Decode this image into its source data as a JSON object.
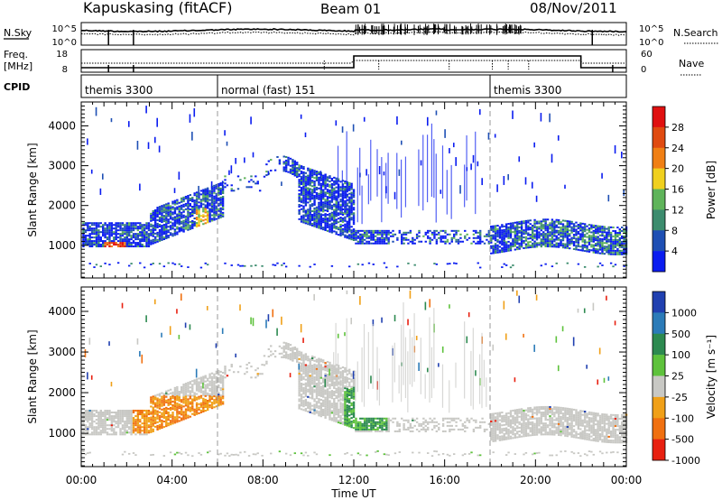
{
  "header": {
    "station": "Kapuskasing (fitACF)",
    "beam": "Beam 01",
    "date": "08/Nov/2011"
  },
  "labels": {
    "nsky": "N.Sky",
    "nsearch": "N.Search",
    "freq": "Freq.",
    "freq_unit": "[MHz]",
    "nave": "Nave",
    "cpid": "CPID",
    "tick_1e5_left": "10^5",
    "tick_1e0_left": "10^0",
    "tick_1e5_right": "10^5",
    "tick_1e0_right": "10^0",
    "freq_ticks": [
      "18",
      "8"
    ],
    "nave_ticks": [
      "60",
      "0"
    ]
  },
  "cpid_segments": [
    {
      "label": "themis 3300",
      "start_h": 0,
      "end_h": 6
    },
    {
      "label": "normal (fast) 151",
      "start_h": 6,
      "end_h": 18
    },
    {
      "label": "themis 3300",
      "start_h": 18,
      "end_h": 24
    }
  ],
  "chart_data": [
    {
      "type": "heatmap",
      "name": "power",
      "xlabel": "Time UT",
      "ylabel": "Slant Range [km]",
      "xlim": [
        0,
        24
      ],
      "ylim": [
        180,
        4600
      ],
      "yticks": [
        1000,
        2000,
        3000,
        4000
      ],
      "xticks": [
        "00:00",
        "04:00",
        "08:00",
        "12:00",
        "16:00",
        "20:00",
        "00:00"
      ],
      "colorbar": {
        "label": "Power [dB]",
        "ticks": [
          "4",
          "8",
          "12",
          "16",
          "20",
          "24",
          "28"
        ]
      }
    },
    {
      "type": "heatmap",
      "name": "velocity",
      "xlabel": "Time UT",
      "ylabel": "Slant Range [km]",
      "xlim": [
        0,
        24
      ],
      "ylim": [
        180,
        4600
      ],
      "yticks": [
        1000,
        2000,
        3000,
        4000
      ],
      "xticks": [
        "00:00",
        "04:00",
        "08:00",
        "12:00",
        "16:00",
        "20:00",
        "00:00"
      ],
      "colorbar": {
        "label": "Velocity [m s⁻¹]",
        "ticks": [
          "1000",
          "500",
          "100",
          "25",
          "-25",
          "-100",
          "-500",
          "-1000"
        ]
      }
    }
  ],
  "colors": {
    "power": [
      "#0a1cf0",
      "#1e4fb4",
      "#3c8c6e",
      "#5fb45a",
      "#f0d01e",
      "#f07f14",
      "#e04a10",
      "#e01010"
    ],
    "velocity": [
      "#2040b0",
      "#2b7bb8",
      "#2d8a50",
      "#5ec23c",
      "#c8c8c4",
      "#f0a018",
      "#f07010",
      "#e82010"
    ]
  }
}
